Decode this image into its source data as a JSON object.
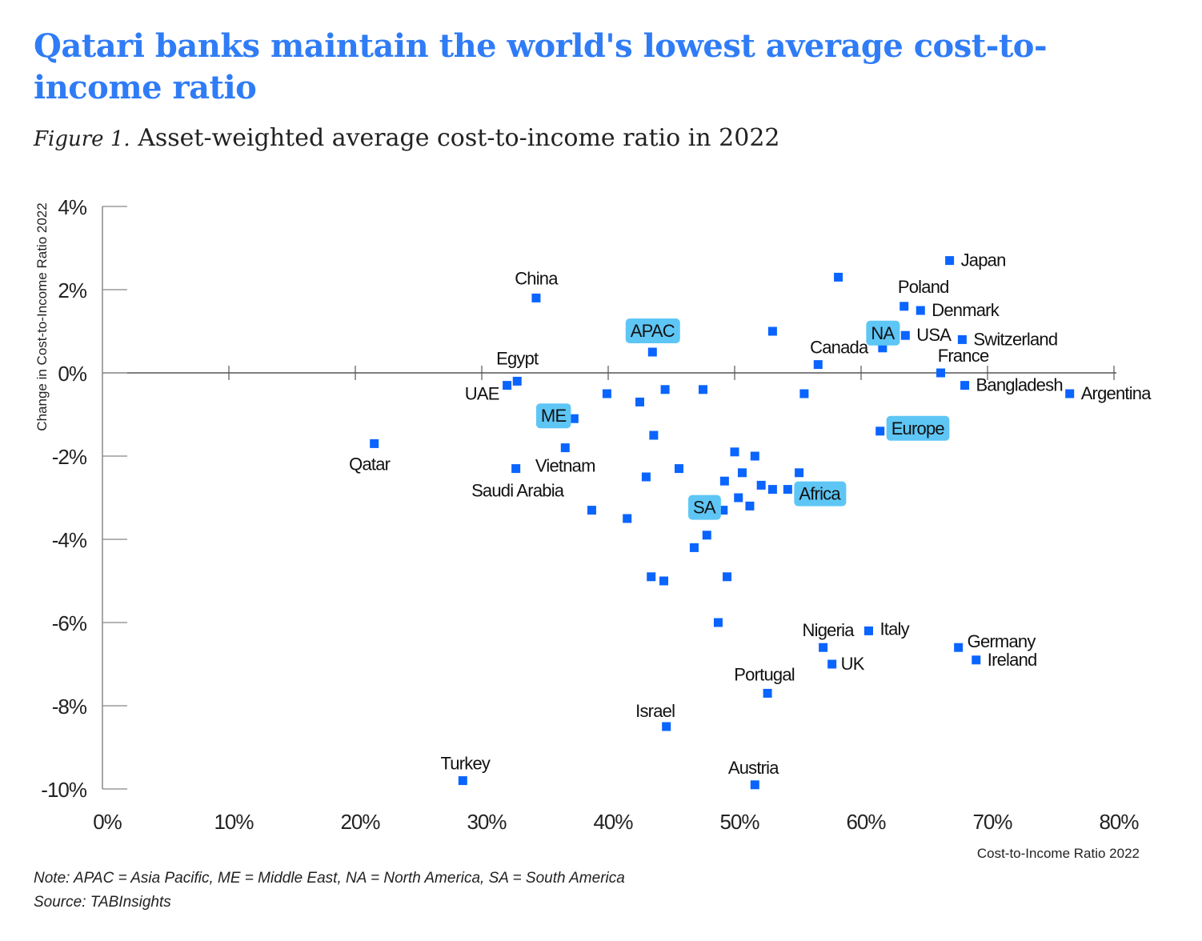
{
  "title": "Qatari banks maintain the world's lowest average cost-to-income ratio",
  "subtitle": {
    "figure": "Figure 1.",
    "text": "Asset-weighted average cost-to-income ratio in 2022"
  },
  "note": "Note: APAC = Asia Pacific, ME = Middle East, NA = North America, SA = South America",
  "source": "Source: TABInsights",
  "colors": {
    "title": "#2f7cf6",
    "marker": "#0a64ff",
    "region_badge": "#5ec6f5"
  },
  "chart_data": {
    "type": "scatter",
    "xlabel": "Cost-to-Income Ratio 2022",
    "ylabel": "Change in Cost-to-Income Ratio 2022",
    "xlim": [
      0,
      80
    ],
    "ylim": [
      -10,
      4
    ],
    "xticks": [
      "0%",
      "10%",
      "20%",
      "30%",
      "40%",
      "50%",
      "60%",
      "70%",
      "80%"
    ],
    "yticks": [
      "4%",
      "2%",
      "0%",
      "-2%",
      "-4%",
      "-6%",
      "-8%",
      "-10%"
    ],
    "grid": false,
    "points": [
      {
        "label": "Japan",
        "x": 67.0,
        "y": 2.7
      },
      {
        "label": "",
        "x": 58.2,
        "y": 2.3
      },
      {
        "label": "Poland",
        "x": 63.4,
        "y": 1.6
      },
      {
        "label": "Denmark",
        "x": 64.7,
        "y": 1.5
      },
      {
        "label": "China",
        "x": 34.3,
        "y": 1.8
      },
      {
        "label": "",
        "x": 53.0,
        "y": 1.0
      },
      {
        "label": "USA",
        "x": 63.5,
        "y": 0.9
      },
      {
        "label": "Switzerland",
        "x": 68.0,
        "y": 0.8
      },
      {
        "label": "NA",
        "x": 61.7,
        "y": 0.6,
        "region": true
      },
      {
        "label": "APAC",
        "x": 43.5,
        "y": 0.5,
        "region": true
      },
      {
        "label": "Canada",
        "x": 56.6,
        "y": 0.2
      },
      {
        "label": "France",
        "x": 66.3,
        "y": 0.0
      },
      {
        "label": "Egypt",
        "x": 32.8,
        "y": -0.2
      },
      {
        "label": "UAE",
        "x": 32.0,
        "y": -0.3
      },
      {
        "label": "Bangladesh",
        "x": 68.2,
        "y": -0.3
      },
      {
        "label": "Argentina",
        "x": 76.5,
        "y": -0.5
      },
      {
        "label": "",
        "x": 39.9,
        "y": -0.5
      },
      {
        "label": "",
        "x": 44.5,
        "y": -0.4
      },
      {
        "label": "",
        "x": 47.5,
        "y": -0.4
      },
      {
        "label": "",
        "x": 55.5,
        "y": -0.5
      },
      {
        "label": "",
        "x": 42.5,
        "y": -0.7
      },
      {
        "label": "ME",
        "x": 37.3,
        "y": -1.1,
        "region": true
      },
      {
        "label": "Europe",
        "x": 61.5,
        "y": -1.4,
        "region": true
      },
      {
        "label": "",
        "x": 43.6,
        "y": -1.5
      },
      {
        "label": "Qatar",
        "x": 21.5,
        "y": -1.7
      },
      {
        "label": "Vietnam",
        "x": 36.6,
        "y": -1.8
      },
      {
        "label": "",
        "x": 50.0,
        "y": -1.9
      },
      {
        "label": "",
        "x": 51.6,
        "y": -2.0
      },
      {
        "label": "Saudi Arabia",
        "x": 32.7,
        "y": -2.3
      },
      {
        "label": "",
        "x": 45.6,
        "y": -2.3
      },
      {
        "label": "",
        "x": 50.6,
        "y": -2.4
      },
      {
        "label": "",
        "x": 55.1,
        "y": -2.4
      },
      {
        "label": "",
        "x": 43.0,
        "y": -2.5
      },
      {
        "label": "",
        "x": 49.2,
        "y": -2.6
      },
      {
        "label": "",
        "x": 52.1,
        "y": -2.7
      },
      {
        "label": "",
        "x": 53.0,
        "y": -2.8
      },
      {
        "label": "Africa",
        "x": 54.2,
        "y": -2.8,
        "region": true
      },
      {
        "label": "",
        "x": 50.3,
        "y": -3.0
      },
      {
        "label": "",
        "x": 51.2,
        "y": -3.2
      },
      {
        "label": "SA",
        "x": 49.1,
        "y": -3.3,
        "region": true
      },
      {
        "label": "",
        "x": 38.7,
        "y": -3.3
      },
      {
        "label": "",
        "x": 41.5,
        "y": -3.5
      },
      {
        "label": "",
        "x": 47.8,
        "y": -3.9
      },
      {
        "label": "",
        "x": 46.8,
        "y": -4.2
      },
      {
        "label": "",
        "x": 43.4,
        "y": -4.9
      },
      {
        "label": "",
        "x": 49.4,
        "y": -4.9
      },
      {
        "label": "",
        "x": 44.4,
        "y": -5.0
      },
      {
        "label": "",
        "x": 48.7,
        "y": -6.0
      },
      {
        "label": "Italy",
        "x": 60.6,
        "y": -6.2
      },
      {
        "label": "Nigeria",
        "x": 57.0,
        "y": -6.6
      },
      {
        "label": "Germany",
        "x": 67.7,
        "y": -6.6
      },
      {
        "label": "Ireland",
        "x": 69.1,
        "y": -6.9
      },
      {
        "label": "UK",
        "x": 57.7,
        "y": -7.0
      },
      {
        "label": "Portugal",
        "x": 52.6,
        "y": -7.7
      },
      {
        "label": "Israel",
        "x": 44.6,
        "y": -8.5
      },
      {
        "label": "Turkey",
        "x": 28.5,
        "y": -9.8
      },
      {
        "label": "Austria",
        "x": 51.6,
        "y": -9.9
      }
    ]
  }
}
